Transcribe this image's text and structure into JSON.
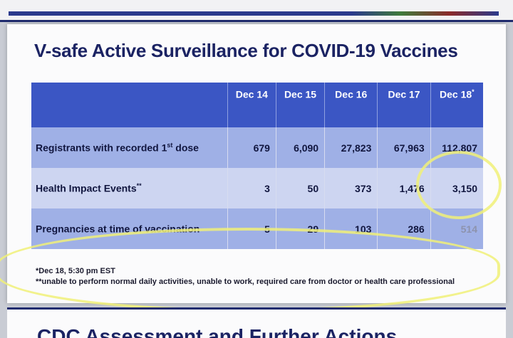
{
  "title": "V-safe Active Surveillance for COVID-19 Vaccines",
  "table": {
    "headers": [
      "",
      "Dec 14",
      "Dec 15",
      "Dec 16",
      "Dec 17",
      "Dec 18"
    ],
    "header_marks": [
      "",
      "",
      "",
      "",
      "",
      "*"
    ],
    "rows": [
      {
        "label_pre": "Registrants with recorded 1",
        "label_sup": "st",
        "label_post": " dose",
        "values": [
          "679",
          "6,090",
          "27,823",
          "67,963",
          "112,807"
        ]
      },
      {
        "label_pre": "Health Impact Events",
        "label_sup": "**",
        "label_post": "",
        "values": [
          "3",
          "50",
          "373",
          "1,476",
          "3,150"
        ]
      },
      {
        "label_pre": "Pregnancies at time of vaccination",
        "label_sup": "",
        "label_post": "",
        "values": [
          "5",
          "29",
          "103",
          "286",
          "514"
        ]
      }
    ]
  },
  "footnotes": [
    "*Dec 18, 5:30 pm EST",
    "**unable to perform normal daily activities, unable to work, required care from doctor or health care professional"
  ],
  "next_slide_peek": "CDC Assessment and Further Actions",
  "colors": {
    "title": "#1b2363",
    "header_bg": "#3b56c4",
    "row_dark": "#9fb0e6",
    "row_light": "#cdd5f1",
    "highlight": "#f0f078"
  }
}
